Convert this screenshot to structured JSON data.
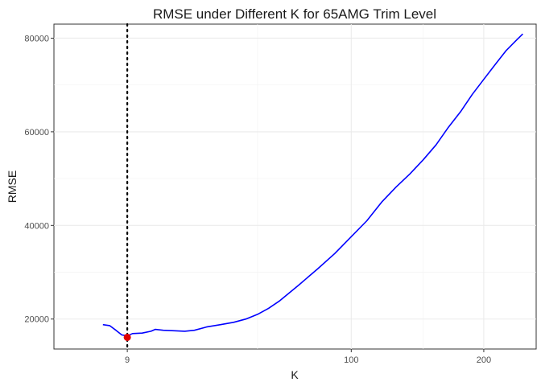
{
  "chart_data": {
    "type": "line",
    "title": "RMSE under Different K for 65AMG Trim Level",
    "xlabel": "K",
    "ylabel": "RMSE",
    "x_scale": "sqrt",
    "xlim": [
      0.5,
      249
    ],
    "ylim": [
      13600,
      83000
    ],
    "x_ticks": [
      9,
      100,
      200
    ],
    "x_tick_labels": [
      "9",
      "100",
      "200"
    ],
    "x_minor_ticks": [
      50,
      150,
      250
    ],
    "y_ticks": [
      20000,
      40000,
      60000,
      80000
    ],
    "y_tick_labels": [
      "20000",
      "40000",
      "60000",
      "80000"
    ],
    "grid": true,
    "series": [
      {
        "color": "#0000ff",
        "x": [
          5,
          6,
          7,
          8,
          9,
          10,
          12,
          14,
          15,
          17,
          20,
          23,
          26,
          30,
          35,
          40,
          45,
          50,
          55,
          60,
          70,
          80,
          90,
          100,
          110,
          120,
          130,
          140,
          150,
          160,
          170,
          180,
          190,
          200,
          210,
          220,
          230,
          236
        ],
        "y": [
          18800,
          18600,
          17600,
          16600,
          16400,
          16900,
          17000,
          17400,
          17800,
          17600,
          17500,
          17400,
          17600,
          18300,
          18800,
          19300,
          20000,
          21000,
          22300,
          23800,
          27300,
          30700,
          34000,
          37600,
          41000,
          45000,
          48200,
          51000,
          54000,
          57200,
          61000,
          64300,
          68000,
          71200,
          74300,
          77300,
          79600,
          80900
        ]
      }
    ],
    "optimal_point": {
      "x": 9,
      "y": 16100,
      "color": "#e00000"
    },
    "vline": {
      "x": 9,
      "style": "dotted",
      "color": "#000000"
    }
  }
}
